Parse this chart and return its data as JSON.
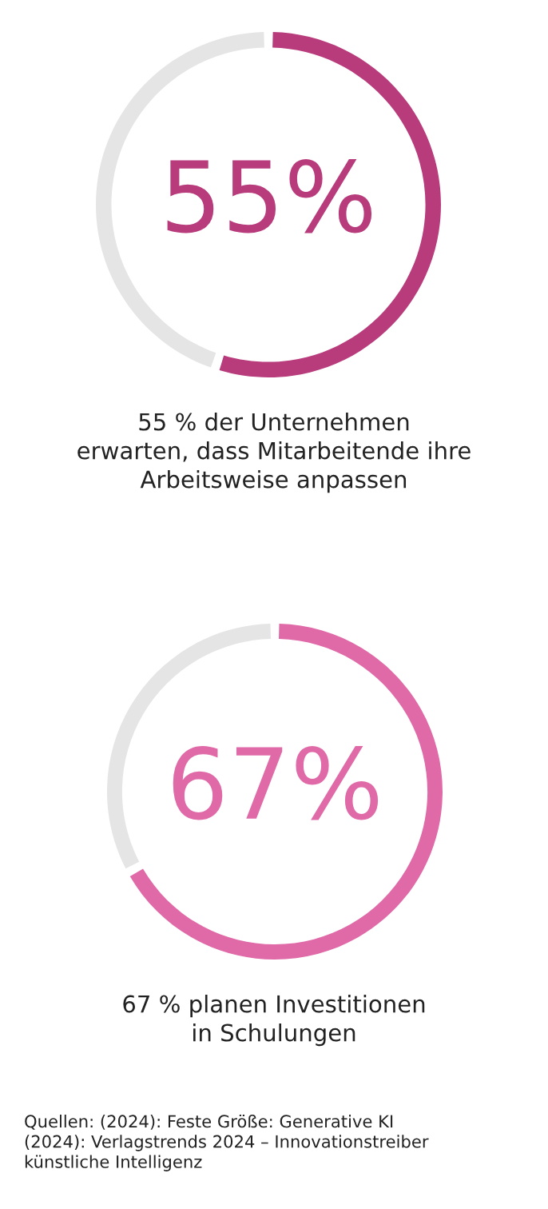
{
  "chart_data": [
    {
      "type": "donut",
      "categories": [
        null,
        null
      ],
      "values": [
        55,
        45
      ],
      "colors": [
        "#b83b7c",
        "#e5e5e5"
      ],
      "value_labels": [
        "55%",
        null
      ],
      "annotations": [
        "55 % der Unternehmen\nerwarten, dass Mitarbeitende ihre\nArbeitsweise anpassen"
      ]
    },
    {
      "type": "donut",
      "categories": [
        null,
        null
      ],
      "values": [
        67,
        33
      ],
      "colors": [
        "#e06aa8",
        "#e5e5e5"
      ],
      "value_labels": [
        "67%",
        null
      ],
      "annotations": [
        "67 % planen Investitionen\nin Schulungen",
        "Quellen: (2024): Feste Größe: Generative KI\n(2024): Verlagstrends 2024 – Innovationstreiber\nkünstliche Intelligenz"
      ]
    }
  ]
}
